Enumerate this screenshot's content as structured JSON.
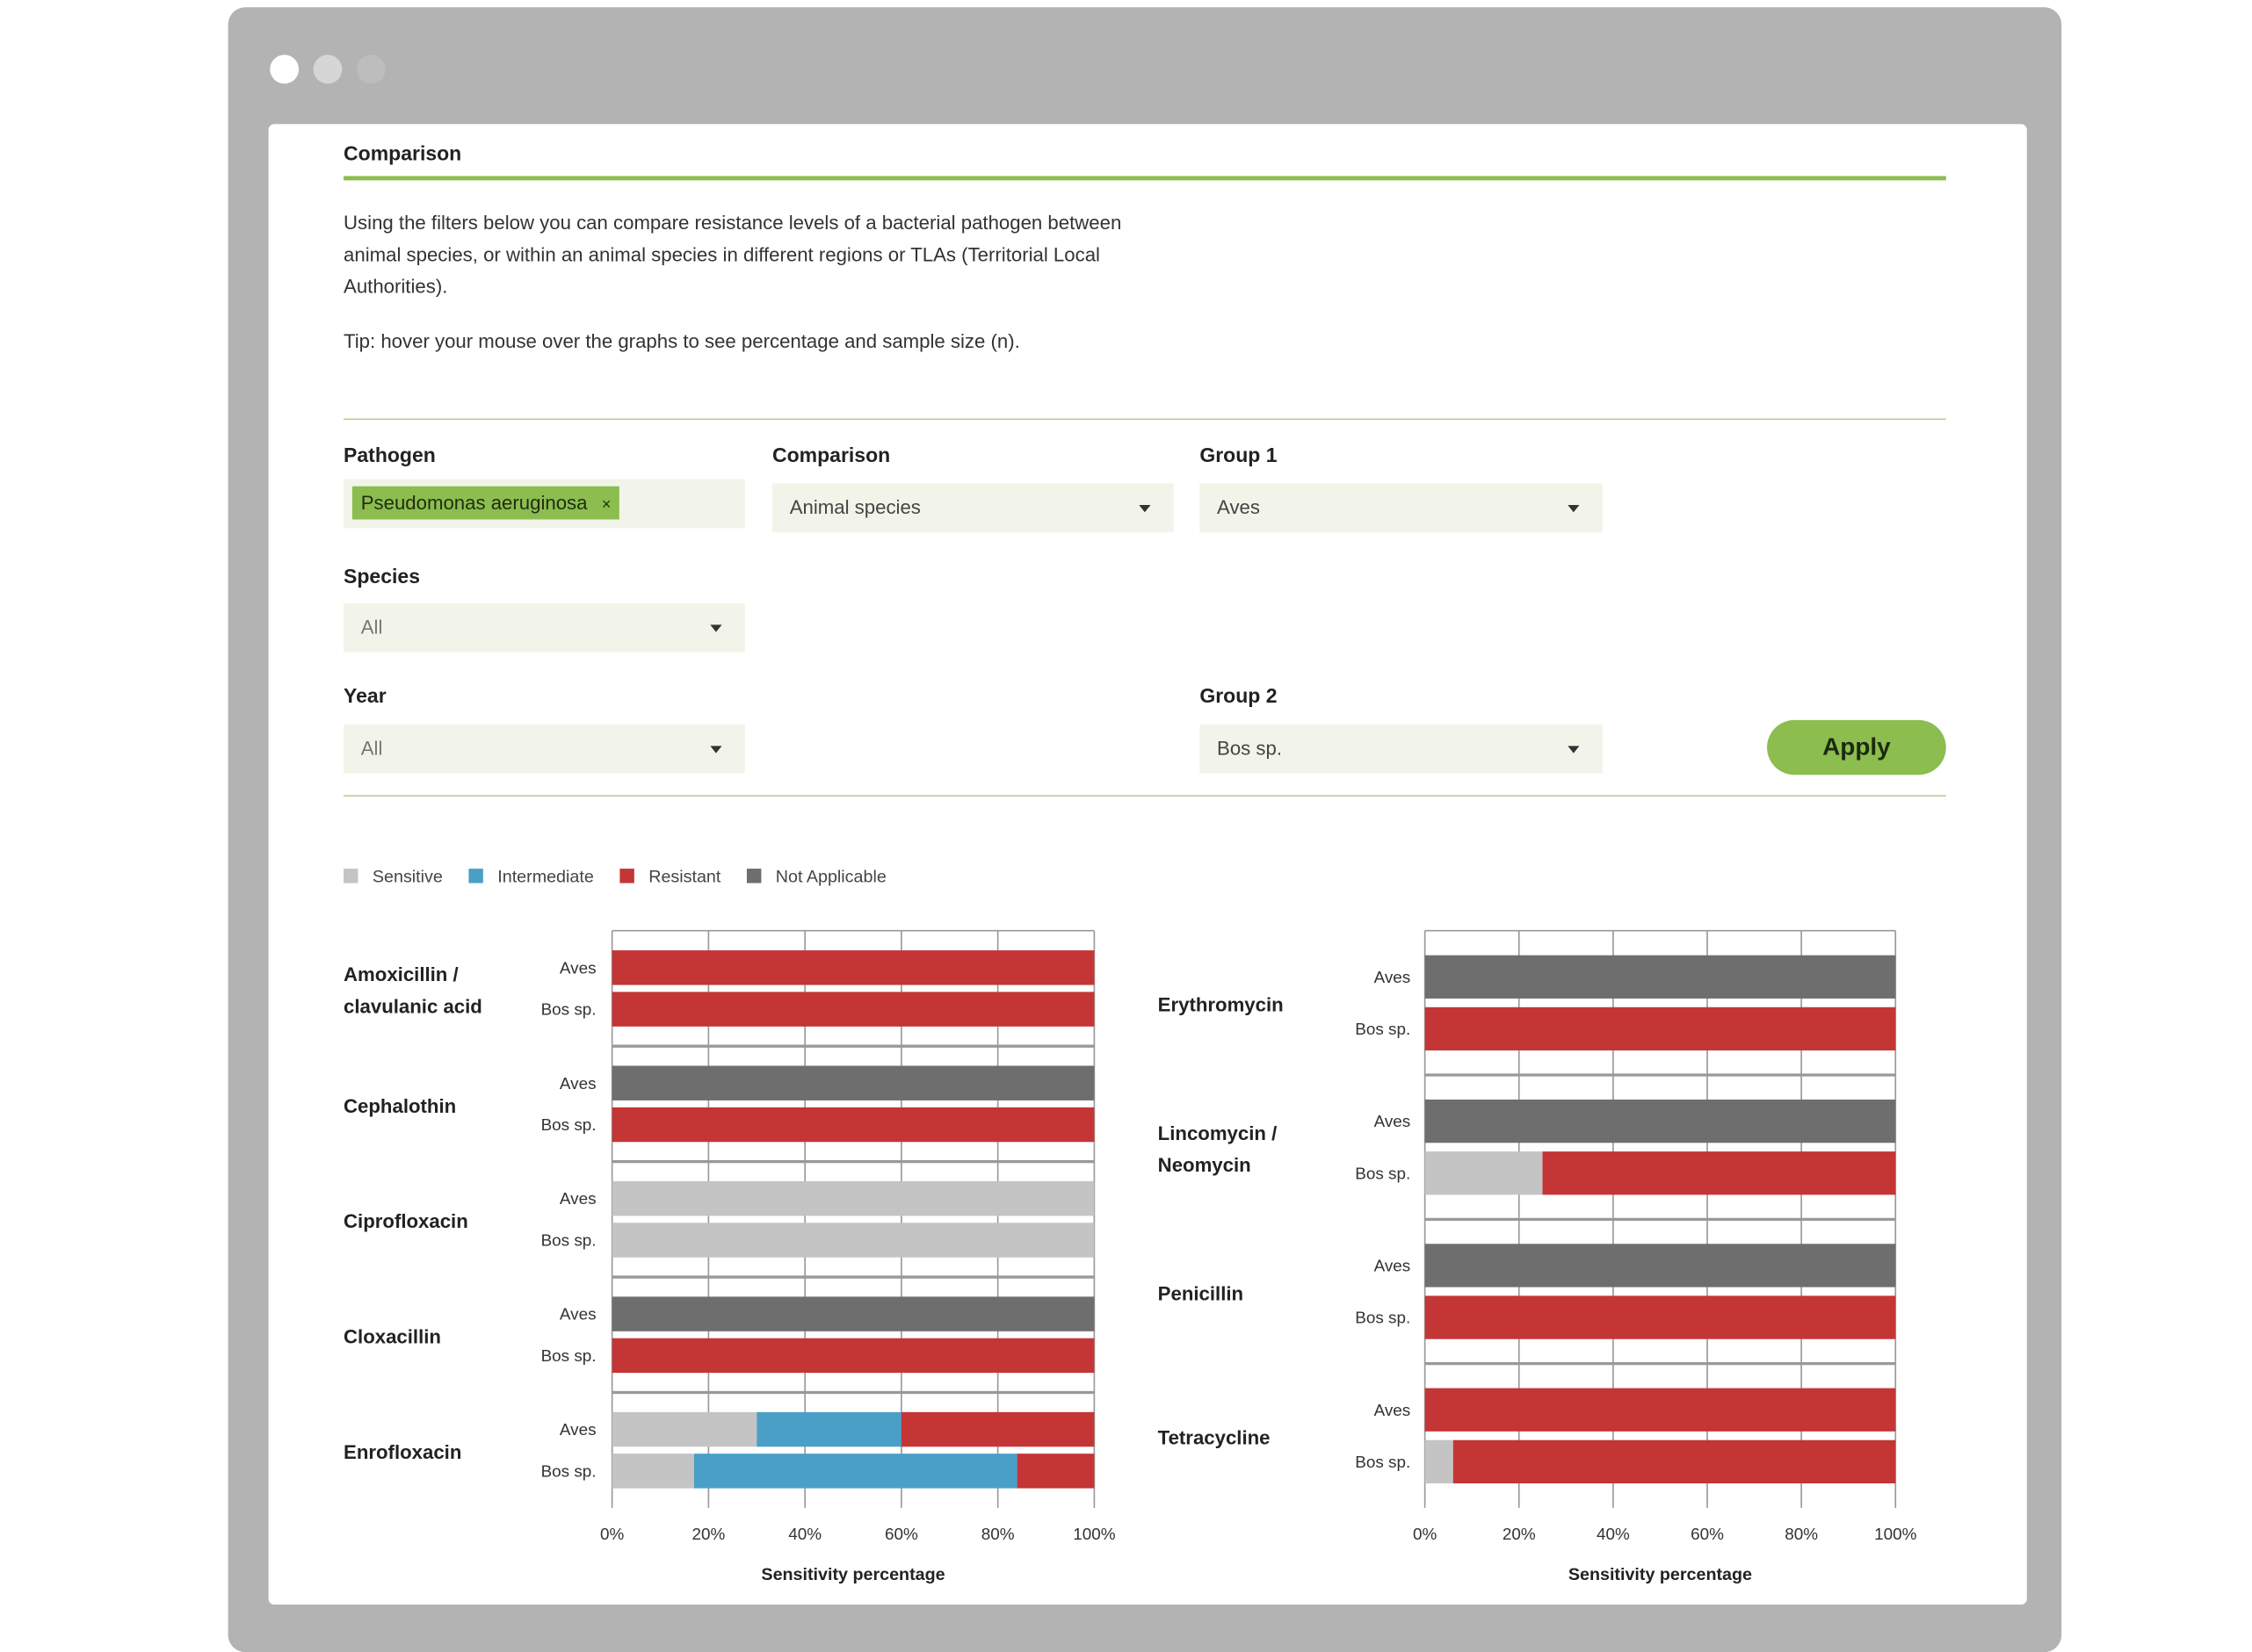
{
  "header": {
    "title": "Comparison"
  },
  "intro": "Using the filters below you can compare resistance levels of a bacterial pathogen between animal species, or within an animal species in different regions or TLAs (Territorial Local Authorities).",
  "tip": "Tip: hover your mouse over the graphs to see percentage and sample size (n).",
  "filters": {
    "pathogen": {
      "label": "Pathogen",
      "value": "Pseudomonas aeruginosa",
      "remove": "×"
    },
    "comparison": {
      "label": "Comparison",
      "value": "Animal species"
    },
    "group1": {
      "label": "Group 1",
      "value": "Aves"
    },
    "species": {
      "label": "Species",
      "value": "All"
    },
    "year": {
      "label": "Year",
      "value": "All"
    },
    "group2": {
      "label": "Group 2",
      "value": "Bos sp."
    },
    "apply": "Apply"
  },
  "chart_data": {
    "type": "bar",
    "horizontal": true,
    "stacked": true,
    "groups": [
      "Aves",
      "Bos sp."
    ],
    "xlabel": "Sensitivity percentage",
    "xlim": [
      0,
      100
    ],
    "xticks": [
      {
        "value": 0,
        "label": "0%"
      },
      {
        "value": 20,
        "label": "20%"
      },
      {
        "value": 40,
        "label": "40%"
      },
      {
        "value": 60,
        "label": "60%"
      },
      {
        "value": 80,
        "label": "80%"
      },
      {
        "value": 100,
        "label": "100%"
      }
    ],
    "grid": true,
    "panels": [
      {
        "categories": [
          "Amoxicillin / clavulanic acid",
          "Cephalothin",
          "Ciprofloxacin",
          "Cloxacillin",
          "Enrofloxacin"
        ]
      },
      {
        "categories": [
          "Erythromycin",
          "Lincomycin / Neomycin",
          "Penicillin",
          "Tetracycline"
        ]
      }
    ],
    "series": [
      {
        "name": "Sensitive",
        "color": "#c4c4c4",
        "values": [
          [
            [
              0,
              0
            ],
            [
              0,
              0
            ],
            [
              100,
              100
            ],
            [
              0,
              0
            ],
            [
              30,
              17
            ]
          ],
          [
            [
              0,
              0
            ],
            [
              0,
              25
            ],
            [
              0,
              0
            ],
            [
              0,
              6
            ]
          ]
        ]
      },
      {
        "name": "Intermediate",
        "color": "#4a9fc7",
        "values": [
          [
            [
              0,
              0
            ],
            [
              0,
              0
            ],
            [
              0,
              0
            ],
            [
              0,
              0
            ],
            [
              30,
              67
            ]
          ],
          [
            [
              0,
              0
            ],
            [
              0,
              0
            ],
            [
              0,
              0
            ],
            [
              0,
              0
            ]
          ]
        ]
      },
      {
        "name": "Resistant",
        "color": "#c43536",
        "values": [
          [
            [
              100,
              100
            ],
            [
              0,
              100
            ],
            [
              0,
              0
            ],
            [
              0,
              100
            ],
            [
              40,
              16
            ]
          ],
          [
            [
              0,
              100
            ],
            [
              0,
              75
            ],
            [
              0,
              100
            ],
            [
              100,
              94
            ]
          ]
        ]
      },
      {
        "name": "Not Applicable",
        "color": "#6e6e6e",
        "values": [
          [
            [
              0,
              0
            ],
            [
              100,
              0
            ],
            [
              0,
              0
            ],
            [
              100,
              0
            ],
            [
              0,
              0
            ]
          ],
          [
            [
              100,
              0
            ],
            [
              100,
              0
            ],
            [
              100,
              0
            ],
            [
              0,
              0
            ]
          ]
        ]
      }
    ]
  }
}
